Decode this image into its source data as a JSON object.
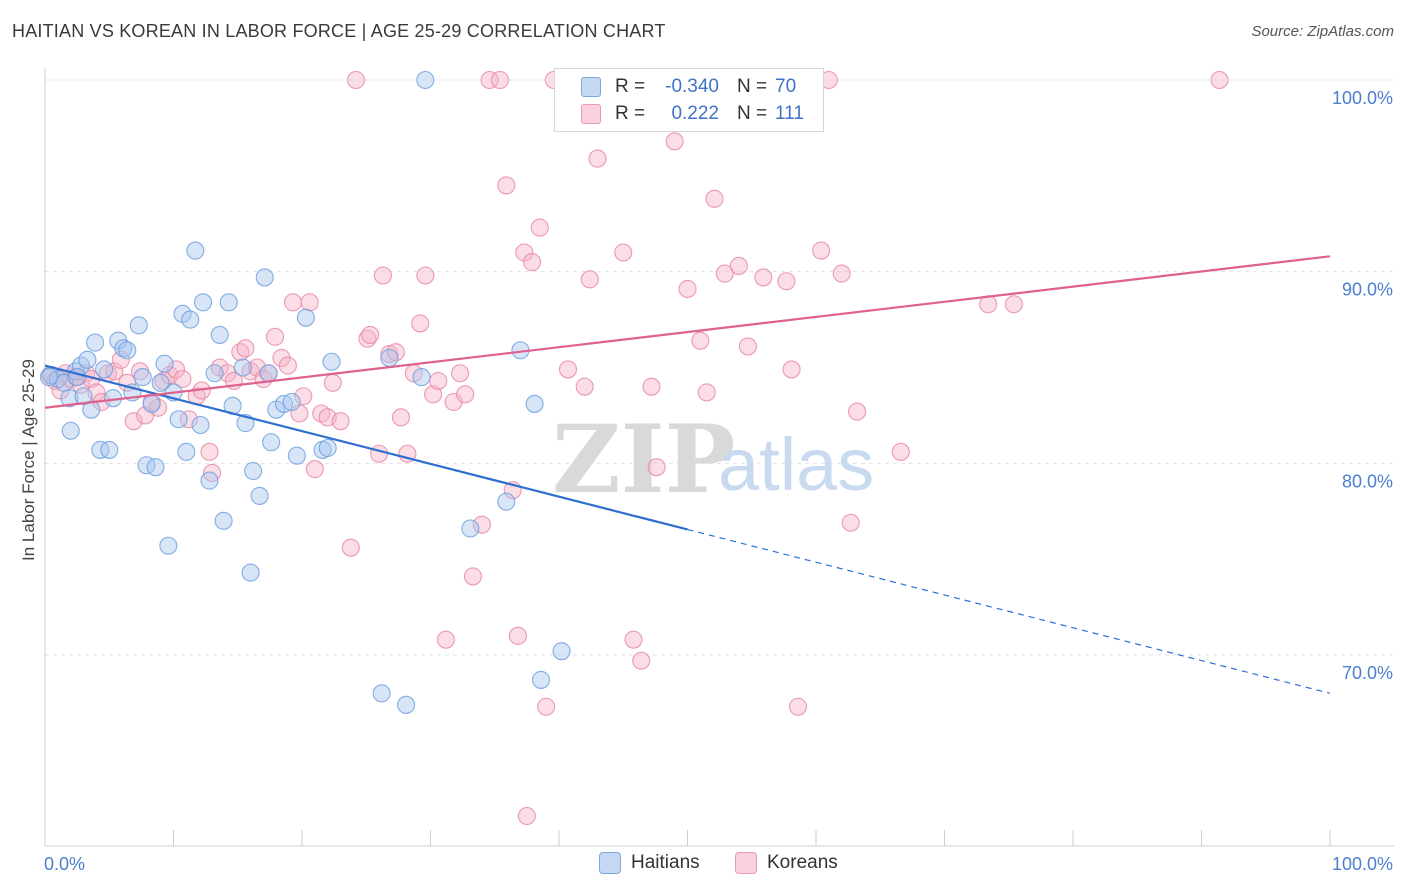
{
  "header": {
    "title": "HAITIAN VS KOREAN IN LABOR FORCE | AGE 25-29 CORRELATION CHART",
    "source": "Source: ZipAtlas.com"
  },
  "legend": {
    "rows": [
      {
        "r_label": "R =",
        "r_value": "-0.340",
        "n_label": "N =",
        "n_value": "70",
        "color": "#a9c6ee"
      },
      {
        "r_label": "R =",
        "r_value": "0.222",
        "n_label": "N =",
        "n_value": "111",
        "color": "#f6b3c8"
      }
    ]
  },
  "bottom_legend": {
    "items": [
      {
        "label": "Haitians",
        "color": "#a9c6ee"
      },
      {
        "label": "Koreans",
        "color": "#f6b3c8"
      }
    ]
  },
  "watermark": {
    "zip": "ZIP",
    "atlas": "atlas"
  },
  "chart_data": {
    "type": "scatter",
    "title": "HAITIAN VS KOREAN IN LABOR FORCE | AGE 25-29 CORRELATION CHART",
    "xlabel": "",
    "ylabel": "In Labor Force | Age 25-29",
    "xlim": [
      0,
      100
    ],
    "ylim": [
      59.5,
      101.5
    ],
    "x_tick_labels": [
      "0.0%",
      "100.0%"
    ],
    "y_ticks": [
      70,
      80,
      90,
      100
    ],
    "y_tick_labels": [
      "70.0%",
      "80.0%",
      "90.0%",
      "100.0%"
    ],
    "grid": true,
    "series": [
      {
        "name": "Haitians",
        "color": "#6fa0e0",
        "fill": "#a9c6ee",
        "line_color": "#2f6fd0",
        "trend": {
          "x0": 0,
          "y0": 85.1,
          "x1": 100,
          "y1": 68.0,
          "solid_until_x": 50
        },
        "points": [
          [
            0.5,
            84.6
          ],
          [
            1.0,
            84.4
          ],
          [
            1.5,
            84.2
          ],
          [
            1.9,
            83.4
          ],
          [
            2.0,
            81.7
          ],
          [
            2.4,
            84.8
          ],
          [
            2.8,
            85.1
          ],
          [
            3.0,
            83.5
          ],
          [
            3.3,
            85.4
          ],
          [
            3.6,
            82.8
          ],
          [
            3.9,
            86.3
          ],
          [
            4.3,
            80.7
          ],
          [
            4.6,
            84.9
          ],
          [
            5.0,
            80.7
          ],
          [
            5.3,
            83.4
          ],
          [
            5.7,
            86.4
          ],
          [
            6.1,
            86.0
          ],
          [
            6.4,
            85.9
          ],
          [
            6.8,
            83.7
          ],
          [
            7.3,
            87.2
          ],
          [
            7.6,
            84.5
          ],
          [
            7.9,
            79.9
          ],
          [
            8.3,
            83.1
          ],
          [
            8.6,
            79.8
          ],
          [
            9.0,
            84.2
          ],
          [
            9.3,
            85.2
          ],
          [
            9.6,
            75.7
          ],
          [
            10.0,
            83.7
          ],
          [
            10.4,
            82.3
          ],
          [
            10.7,
            87.8
          ],
          [
            11.0,
            80.6
          ],
          [
            11.3,
            87.5
          ],
          [
            11.7,
            91.1
          ],
          [
            12.1,
            82.0
          ],
          [
            12.3,
            88.4
          ],
          [
            12.8,
            79.1
          ],
          [
            13.2,
            84.7
          ],
          [
            13.6,
            86.7
          ],
          [
            13.9,
            77.0
          ],
          [
            14.3,
            88.4
          ],
          [
            14.6,
            83.0
          ],
          [
            15.4,
            85.0
          ],
          [
            15.6,
            82.1
          ],
          [
            16.0,
            74.3
          ],
          [
            16.2,
            79.6
          ],
          [
            16.7,
            78.3
          ],
          [
            17.1,
            89.7
          ],
          [
            17.4,
            84.7
          ],
          [
            17.6,
            81.1
          ],
          [
            18.0,
            82.8
          ],
          [
            18.6,
            83.1
          ],
          [
            19.2,
            83.2
          ],
          [
            19.6,
            80.4
          ],
          [
            20.3,
            87.6
          ],
          [
            21.6,
            80.7
          ],
          [
            22.0,
            80.8
          ],
          [
            22.3,
            85.3
          ],
          [
            26.2,
            68.0
          ],
          [
            26.8,
            85.5
          ],
          [
            28.1,
            67.4
          ],
          [
            29.3,
            84.5
          ],
          [
            29.6,
            100.0
          ],
          [
            33.1,
            76.6
          ],
          [
            35.9,
            78.0
          ],
          [
            37.0,
            85.9
          ],
          [
            38.1,
            83.1
          ],
          [
            38.6,
            68.7
          ],
          [
            40.2,
            70.2
          ],
          [
            0.3,
            84.5
          ],
          [
            2.5,
            84.5
          ]
        ]
      },
      {
        "name": "Koreans",
        "color": "#e88aa8",
        "fill": "#f6b3c8",
        "line_color": "#e0608e",
        "trend": {
          "x0": 0,
          "y0": 82.9,
          "x1": 100,
          "y1": 90.8
        },
        "points": [
          [
            0.4,
            84.6
          ],
          [
            0.8,
            84.3
          ],
          [
            1.2,
            83.8
          ],
          [
            1.6,
            84.7
          ],
          [
            2.0,
            84.4
          ],
          [
            2.4,
            84.5
          ],
          [
            2.8,
            84.1
          ],
          [
            3.2,
            84.7
          ],
          [
            3.6,
            84.4
          ],
          [
            4.0,
            83.7
          ],
          [
            4.4,
            83.2
          ],
          [
            4.9,
            84.7
          ],
          [
            5.4,
            84.8
          ],
          [
            5.9,
            85.4
          ],
          [
            6.4,
            84.2
          ],
          [
            6.9,
            82.2
          ],
          [
            7.4,
            84.8
          ],
          [
            7.8,
            82.5
          ],
          [
            8.3,
            83.2
          ],
          [
            8.8,
            82.9
          ],
          [
            9.2,
            84.3
          ],
          [
            9.7,
            84.6
          ],
          [
            10.2,
            84.9
          ],
          [
            10.7,
            84.4
          ],
          [
            11.2,
            82.3
          ],
          [
            11.8,
            83.5
          ],
          [
            12.2,
            83.8
          ],
          [
            12.8,
            80.6
          ],
          [
            13.0,
            79.5
          ],
          [
            13.6,
            85.0
          ],
          [
            14.2,
            84.7
          ],
          [
            14.7,
            84.3
          ],
          [
            15.2,
            85.8
          ],
          [
            15.6,
            86.0
          ],
          [
            16.0,
            84.8
          ],
          [
            16.5,
            85.0
          ],
          [
            17.0,
            84.4
          ],
          [
            17.4,
            84.7
          ],
          [
            17.9,
            86.6
          ],
          [
            18.4,
            85.5
          ],
          [
            18.9,
            85.1
          ],
          [
            19.3,
            88.4
          ],
          [
            19.8,
            82.6
          ],
          [
            20.1,
            83.5
          ],
          [
            20.6,
            88.4
          ],
          [
            21.0,
            79.7
          ],
          [
            21.5,
            82.6
          ],
          [
            22.0,
            82.4
          ],
          [
            22.4,
            84.2
          ],
          [
            23.0,
            82.2
          ],
          [
            23.8,
            75.6
          ],
          [
            24.2,
            100.0
          ],
          [
            25.1,
            86.5
          ],
          [
            25.3,
            86.7
          ],
          [
            26.0,
            80.5
          ],
          [
            26.3,
            89.8
          ],
          [
            26.8,
            85.7
          ],
          [
            27.3,
            85.8
          ],
          [
            27.7,
            82.4
          ],
          [
            28.2,
            80.5
          ],
          [
            28.7,
            84.7
          ],
          [
            29.2,
            87.3
          ],
          [
            29.6,
            89.8
          ],
          [
            30.2,
            83.6
          ],
          [
            30.6,
            84.3
          ],
          [
            31.2,
            70.8
          ],
          [
            31.8,
            83.2
          ],
          [
            32.3,
            84.7
          ],
          [
            32.7,
            83.6
          ],
          [
            33.3,
            74.1
          ],
          [
            34.0,
            76.8
          ],
          [
            34.6,
            100.0
          ],
          [
            35.4,
            100.0
          ],
          [
            35.9,
            94.5
          ],
          [
            36.4,
            78.6
          ],
          [
            36.8,
            71.0
          ],
          [
            37.3,
            91.0
          ],
          [
            37.9,
            90.5
          ],
          [
            38.5,
            92.3
          ],
          [
            39.0,
            67.3
          ],
          [
            39.6,
            100.0
          ],
          [
            40.7,
            84.9
          ],
          [
            42.0,
            84.0
          ],
          [
            42.4,
            89.6
          ],
          [
            43.0,
            95.9
          ],
          [
            45.0,
            91.0
          ],
          [
            45.8,
            70.8
          ],
          [
            46.4,
            69.7
          ],
          [
            47.2,
            84.0
          ],
          [
            47.6,
            79.8
          ],
          [
            49.0,
            96.8
          ],
          [
            50.0,
            89.1
          ],
          [
            51.0,
            86.4
          ],
          [
            51.5,
            83.7
          ],
          [
            52.1,
            93.8
          ],
          [
            52.9,
            89.9
          ],
          [
            54.0,
            90.3
          ],
          [
            54.7,
            86.1
          ],
          [
            55.9,
            89.7
          ],
          [
            57.7,
            89.5
          ],
          [
            58.1,
            84.9
          ],
          [
            58.6,
            67.3
          ],
          [
            60.4,
            91.1
          ],
          [
            61.0,
            100.0
          ],
          [
            62.0,
            89.9
          ],
          [
            62.7,
            76.9
          ],
          [
            63.2,
            82.7
          ],
          [
            66.6,
            80.6
          ],
          [
            73.4,
            88.3
          ],
          [
            75.4,
            88.3
          ],
          [
            91.4,
            100.0
          ],
          [
            37.5,
            61.6
          ]
        ]
      }
    ]
  }
}
